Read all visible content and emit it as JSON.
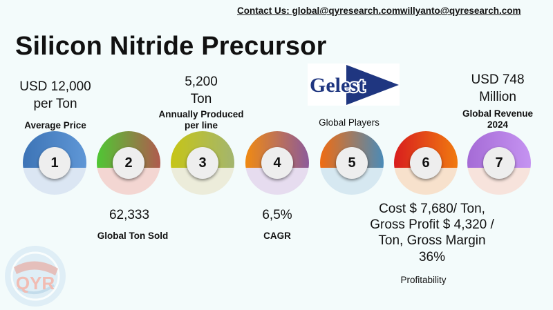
{
  "contact": "Contact Us: global@qyresearch.comwillyanto@qyresearch.com",
  "title": "Silicon Nitride Precursor",
  "top_metrics": [
    {
      "value_line1": "USD 12,000",
      "value_line2": "per Ton",
      "label": "Average Price"
    },
    {
      "value_line1": "5,200",
      "value_line2": "Ton",
      "label_line1": "Annually Produced",
      "label_line2": "per line"
    },
    {
      "label": "Global Players"
    },
    {
      "value_line1": "USD 748",
      "value_line2": "Million",
      "label_line1": "Global Revenue",
      "label_line2": "2024"
    }
  ],
  "bottom_metrics": [
    {
      "value": "62,333",
      "label": "Global Ton Sold"
    },
    {
      "value": "6,5%",
      "label": "CAGR"
    },
    {
      "value_lines": [
        "Cost $ 7,680/ Ton,",
        "Gross Profit $ 4,320 /",
        "Ton, Gross Margin",
        "36%"
      ],
      "label": "Profitability"
    }
  ],
  "circles": [
    {
      "number": "1",
      "ring_colors": [
        "#3d74b6",
        "#5f97d6"
      ],
      "bottom_color": "#dbe6f3"
    },
    {
      "number": "2",
      "ring_colors": [
        "#4fc734",
        "#b05a4e"
      ],
      "bottom_color": "#f3d6d2"
    },
    {
      "number": "3",
      "ring_colors": [
        "#c6c516",
        "#a3b56f"
      ],
      "bottom_color": "#ececda"
    },
    {
      "number": "4",
      "ring_colors": [
        "#f08a12",
        "#8c5a9a"
      ],
      "bottom_color": "#e6dcef"
    },
    {
      "number": "5",
      "ring_colors": [
        "#f06c12",
        "#4a8bb8"
      ],
      "bottom_color": "#d6e8f1"
    },
    {
      "number": "6",
      "ring_colors": [
        "#d81e1e",
        "#f07a10"
      ],
      "bottom_color": "#f7e1cc"
    },
    {
      "number": "7",
      "ring_colors": [
        "#a56bd6",
        "#c593f1"
      ],
      "bottom_color": "#f7e3dc"
    }
  ],
  "logo": {
    "text": "Gelest",
    "color": "#1f3680"
  },
  "watermark": {
    "text": "QYR",
    "color": "#f08a7a"
  }
}
